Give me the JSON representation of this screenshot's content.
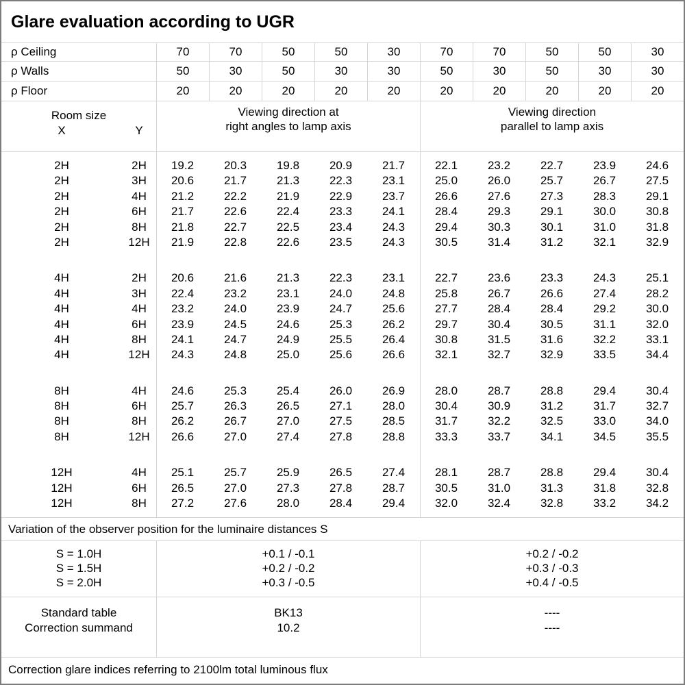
{
  "title": "Glare evaluation according to UGR",
  "rho_rows": [
    {
      "label": "ρ Ceiling",
      "values": [
        "70",
        "70",
        "50",
        "50",
        "30",
        "70",
        "70",
        "50",
        "50",
        "30"
      ]
    },
    {
      "label": "ρ Walls",
      "values": [
        "50",
        "30",
        "50",
        "30",
        "30",
        "50",
        "30",
        "50",
        "30",
        "30"
      ]
    },
    {
      "label": "ρ Floor",
      "values": [
        "20",
        "20",
        "20",
        "20",
        "20",
        "20",
        "20",
        "20",
        "20",
        "20"
      ]
    }
  ],
  "header": {
    "room_size": "Room size",
    "x": "X",
    "y": "Y",
    "group1_line1": "Viewing direction at",
    "group1_line2": "right angles to lamp axis",
    "group2_line1": "Viewing direction",
    "group2_line2": "parallel to lamp axis"
  },
  "blocks": [
    {
      "rows": [
        {
          "x": "2H",
          "y": "2H",
          "values": [
            "19.2",
            "20.3",
            "19.8",
            "20.9",
            "21.7",
            "22.1",
            "23.2",
            "22.7",
            "23.9",
            "24.6"
          ]
        },
        {
          "x": "2H",
          "y": "3H",
          "values": [
            "20.6",
            "21.7",
            "21.3",
            "22.3",
            "23.1",
            "25.0",
            "26.0",
            "25.7",
            "26.7",
            "27.5"
          ]
        },
        {
          "x": "2H",
          "y": "4H",
          "values": [
            "21.2",
            "22.2",
            "21.9",
            "22.9",
            "23.7",
            "26.6",
            "27.6",
            "27.3",
            "28.3",
            "29.1"
          ]
        },
        {
          "x": "2H",
          "y": "6H",
          "values": [
            "21.7",
            "22.6",
            "22.4",
            "23.3",
            "24.1",
            "28.4",
            "29.3",
            "29.1",
            "30.0",
            "30.8"
          ]
        },
        {
          "x": "2H",
          "y": "8H",
          "values": [
            "21.8",
            "22.7",
            "22.5",
            "23.4",
            "24.3",
            "29.4",
            "30.3",
            "30.1",
            "31.0",
            "31.8"
          ]
        },
        {
          "x": "2H",
          "y": "12H",
          "values": [
            "21.9",
            "22.8",
            "22.6",
            "23.5",
            "24.3",
            "30.5",
            "31.4",
            "31.2",
            "32.1",
            "32.9"
          ]
        }
      ]
    },
    {
      "rows": [
        {
          "x": "4H",
          "y": "2H",
          "values": [
            "20.6",
            "21.6",
            "21.3",
            "22.3",
            "23.1",
            "22.7",
            "23.6",
            "23.3",
            "24.3",
            "25.1"
          ]
        },
        {
          "x": "4H",
          "y": "3H",
          "values": [
            "22.4",
            "23.2",
            "23.1",
            "24.0",
            "24.8",
            "25.8",
            "26.7",
            "26.6",
            "27.4",
            "28.2"
          ]
        },
        {
          "x": "4H",
          "y": "4H",
          "values": [
            "23.2",
            "24.0",
            "23.9",
            "24.7",
            "25.6",
            "27.7",
            "28.4",
            "28.4",
            "29.2",
            "30.0"
          ]
        },
        {
          "x": "4H",
          "y": "6H",
          "values": [
            "23.9",
            "24.5",
            "24.6",
            "25.3",
            "26.2",
            "29.7",
            "30.4",
            "30.5",
            "31.1",
            "32.0"
          ]
        },
        {
          "x": "4H",
          "y": "8H",
          "values": [
            "24.1",
            "24.7",
            "24.9",
            "25.5",
            "26.4",
            "30.8",
            "31.5",
            "31.6",
            "32.2",
            "33.1"
          ]
        },
        {
          "x": "4H",
          "y": "12H",
          "values": [
            "24.3",
            "24.8",
            "25.0",
            "25.6",
            "26.6",
            "32.1",
            "32.7",
            "32.9",
            "33.5",
            "34.4"
          ]
        }
      ]
    },
    {
      "rows": [
        {
          "x": "8H",
          "y": "4H",
          "values": [
            "24.6",
            "25.3",
            "25.4",
            "26.0",
            "26.9",
            "28.0",
            "28.7",
            "28.8",
            "29.4",
            "30.4"
          ]
        },
        {
          "x": "8H",
          "y": "6H",
          "values": [
            "25.7",
            "26.3",
            "26.5",
            "27.1",
            "28.0",
            "30.4",
            "30.9",
            "31.2",
            "31.7",
            "32.7"
          ]
        },
        {
          "x": "8H",
          "y": "8H",
          "values": [
            "26.2",
            "26.7",
            "27.0",
            "27.5",
            "28.5",
            "31.7",
            "32.2",
            "32.5",
            "33.0",
            "34.0"
          ]
        },
        {
          "x": "8H",
          "y": "12H",
          "values": [
            "26.6",
            "27.0",
            "27.4",
            "27.8",
            "28.8",
            "33.3",
            "33.7",
            "34.1",
            "34.5",
            "35.5"
          ]
        }
      ]
    },
    {
      "rows": [
        {
          "x": "12H",
          "y": "4H",
          "values": [
            "25.1",
            "25.7",
            "25.9",
            "26.5",
            "27.4",
            "28.1",
            "28.7",
            "28.8",
            "29.4",
            "30.4"
          ]
        },
        {
          "x": "12H",
          "y": "6H",
          "values": [
            "26.5",
            "27.0",
            "27.3",
            "27.8",
            "28.7",
            "30.5",
            "31.0",
            "31.3",
            "31.8",
            "32.8"
          ]
        },
        {
          "x": "12H",
          "y": "8H",
          "values": [
            "27.2",
            "27.6",
            "28.0",
            "28.4",
            "29.4",
            "32.0",
            "32.4",
            "32.8",
            "33.2",
            "34.2"
          ]
        }
      ]
    }
  ],
  "variation_note": "Variation of the observer position for the luminaire distances S",
  "s_section": {
    "labels": [
      "S = 1.0H",
      "S = 1.5H",
      "S = 2.0H"
    ],
    "right_angle": [
      "+0.1 / -0.1",
      "+0.2 / -0.2",
      "+0.3 / -0.5"
    ],
    "parallel": [
      "+0.2 / -0.2",
      "+0.3 / -0.3",
      "+0.4 / -0.5"
    ]
  },
  "standard_section": {
    "rows": [
      {
        "label": "Standard table",
        "right_angle": "BK13",
        "parallel": "----"
      },
      {
        "label": "Correction summand",
        "right_angle": "10.2",
        "parallel": "----"
      }
    ]
  },
  "footer_note": "Correction glare indices referring to 2100lm total luminous flux",
  "colors": {
    "grid": "#d4d4d4",
    "outer_border": "#7d7d7d",
    "text": "#000000",
    "background": "#ffffff"
  }
}
